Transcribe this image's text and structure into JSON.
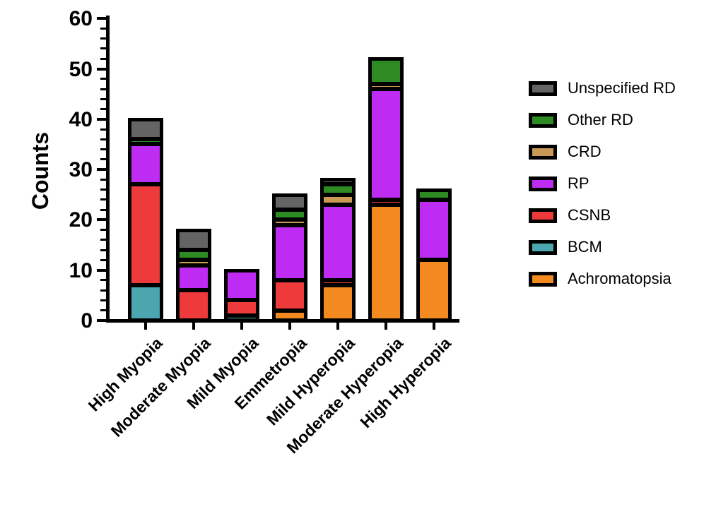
{
  "chart_data": {
    "type": "bar",
    "variant": "stacked-vertical",
    "title": "",
    "ylabel": "Counts",
    "xlabel": "",
    "ylim": [
      0,
      60
    ],
    "yticks": [
      0,
      10,
      20,
      30,
      40,
      50,
      60
    ],
    "minor_tick_step": 2,
    "grid": "off",
    "legend_position": "right",
    "categories": [
      "High Myopia",
      "Moderate Myopia",
      "Mild Myopia",
      "Emmetropia",
      "Mild Hyperopia",
      "Moderate Hyperopia",
      "High Hyperopia"
    ],
    "series": [
      {
        "name": "Achromatopsia",
        "color": "#F28A1F",
        "values": [
          0,
          0,
          0,
          2,
          7,
          23,
          12
        ]
      },
      {
        "name": "BCM",
        "color": "#4CA6B0",
        "values": [
          7,
          0,
          1,
          0,
          0,
          0,
          0
        ]
      },
      {
        "name": "CSNB",
        "color": "#EF3A3C",
        "values": [
          20,
          6,
          3,
          6,
          1,
          1,
          0
        ]
      },
      {
        "name": "RP",
        "color": "#BE2BF2",
        "values": [
          8,
          5,
          6,
          11,
          15,
          22,
          12
        ]
      },
      {
        "name": "CRD",
        "color": "#C89A55",
        "values": [
          0,
          1,
          0,
          1,
          2,
          1,
          0
        ]
      },
      {
        "name": "Other RD",
        "color": "#2E8B24",
        "values": [
          1,
          2,
          0,
          2,
          2,
          5,
          2
        ]
      },
      {
        "name": "Unspecified RD",
        "color": "#646464",
        "values": [
          4,
          4,
          0,
          3,
          1,
          0,
          0
        ]
      }
    ],
    "legend": [
      "Unspecified RD",
      "Other RD",
      "CRD",
      "RP",
      "CSNB",
      "BCM",
      "Achromatopsia"
    ]
  }
}
